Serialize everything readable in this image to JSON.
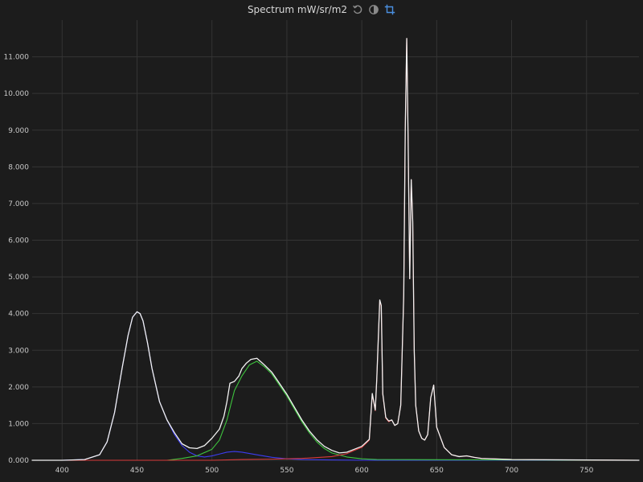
{
  "header": {
    "title": "Spectrum mW/sr/m2",
    "icons": [
      "reset-icon",
      "contrast-icon",
      "crop-icon"
    ]
  },
  "colors": {
    "background": "#1c1c1c",
    "grid": "#343434",
    "text": "#c8c8c8",
    "total": "#f2f2f2",
    "red": "#d93a3a",
    "green": "#3ec43e",
    "blue": "#3c3cf0",
    "icon_active": "#4a8fe0",
    "icon_inactive": "#8a8a8a"
  },
  "chart_data": {
    "type": "line",
    "title": "Spectrum mW/sr/m2",
    "xlabel": "",
    "ylabel": "",
    "xlim": [
      380,
      785
    ],
    "ylim": [
      0,
      12
    ],
    "grid": true,
    "x_ticks": [
      400,
      450,
      500,
      550,
      600,
      650,
      700,
      750
    ],
    "x_tick_labels": [
      "400",
      "450",
      "500",
      "550",
      "600",
      "650",
      "700",
      "750"
    ],
    "y_ticks": [
      0,
      1,
      2,
      3,
      4,
      5,
      6,
      7,
      8,
      9,
      10,
      11
    ],
    "y_tick_labels": [
      "0.000",
      "1.000",
      "2.000",
      "3.000",
      "4.000",
      "5.000",
      "6.000",
      "7.000",
      "8.000",
      "9.000",
      "10.000",
      "11.000"
    ],
    "series": [
      {
        "key": "blue",
        "x": [
          380,
          400,
          415,
          425,
          430,
          435,
          440,
          444,
          447,
          450,
          452,
          454,
          457,
          460,
          465,
          470,
          475,
          480,
          485,
          490,
          495,
          500,
          505,
          510,
          515,
          520,
          530,
          540,
          550,
          560,
          580,
          600,
          650,
          700,
          785
        ],
        "y": [
          0.0,
          0.0,
          0.02,
          0.15,
          0.5,
          1.3,
          2.5,
          3.4,
          3.9,
          4.05,
          4.0,
          3.8,
          3.2,
          2.5,
          1.6,
          1.1,
          0.7,
          0.4,
          0.22,
          0.12,
          0.09,
          0.12,
          0.17,
          0.22,
          0.24,
          0.22,
          0.15,
          0.08,
          0.04,
          0.02,
          0.01,
          0.0,
          0.0,
          0.0,
          0.0
        ]
      },
      {
        "key": "green",
        "x": [
          380,
          470,
          480,
          490,
          500,
          505,
          510,
          515,
          520,
          525,
          530,
          535,
          540,
          545,
          550,
          555,
          560,
          565,
          570,
          575,
          580,
          590,
          600,
          610,
          785
        ],
        "y": [
          0.0,
          0.0,
          0.05,
          0.12,
          0.3,
          0.55,
          1.1,
          1.9,
          2.3,
          2.6,
          2.7,
          2.55,
          2.35,
          2.05,
          1.75,
          1.4,
          1.05,
          0.75,
          0.5,
          0.32,
          0.2,
          0.09,
          0.04,
          0.02,
          0.0
        ]
      },
      {
        "key": "red",
        "x": [
          380,
          500,
          520,
          540,
          560,
          580,
          590,
          595,
          600,
          605,
          607,
          609,
          610,
          612,
          613,
          614,
          616,
          618,
          620,
          622,
          624,
          626,
          628,
          629,
          630,
          631,
          632,
          633,
          634,
          635,
          636,
          638,
          640,
          642,
          644,
          646,
          648,
          650,
          655,
          660,
          665,
          670,
          675,
          680,
          700,
          785
        ],
        "y": [
          0.0,
          0.0,
          0.02,
          0.03,
          0.05,
          0.1,
          0.18,
          0.27,
          0.35,
          0.55,
          1.8,
          1.35,
          2.2,
          4.35,
          4.2,
          1.8,
          1.15,
          1.05,
          1.1,
          0.95,
          1.0,
          1.5,
          4.5,
          9.0,
          11.5,
          8.5,
          4.95,
          7.65,
          6.5,
          3.0,
          1.5,
          0.8,
          0.6,
          0.55,
          0.7,
          1.7,
          2.05,
          0.9,
          0.35,
          0.15,
          0.1,
          0.12,
          0.08,
          0.05,
          0.02,
          0.0
        ]
      },
      {
        "key": "total",
        "x": [
          380,
          400,
          415,
          425,
          430,
          435,
          440,
          444,
          447,
          450,
          452,
          454,
          457,
          460,
          465,
          470,
          475,
          480,
          485,
          490,
          495,
          500,
          505,
          508,
          510,
          512,
          515,
          518,
          520,
          523,
          526,
          530,
          535,
          540,
          545,
          550,
          555,
          560,
          565,
          570,
          575,
          580,
          585,
          590,
          595,
          600,
          605,
          607,
          609,
          610,
          612,
          613,
          614,
          616,
          618,
          620,
          622,
          624,
          626,
          628,
          629,
          630,
          631,
          632,
          633,
          634,
          635,
          636,
          638,
          640,
          642,
          644,
          646,
          648,
          650,
          655,
          660,
          665,
          670,
          675,
          680,
          700,
          785
        ],
        "y": [
          0.0,
          0.0,
          0.02,
          0.15,
          0.5,
          1.3,
          2.5,
          3.4,
          3.9,
          4.05,
          4.0,
          3.8,
          3.2,
          2.5,
          1.6,
          1.1,
          0.75,
          0.45,
          0.34,
          0.32,
          0.4,
          0.6,
          0.85,
          1.2,
          1.6,
          2.1,
          2.15,
          2.3,
          2.5,
          2.65,
          2.75,
          2.78,
          2.6,
          2.4,
          2.1,
          1.8,
          1.45,
          1.1,
          0.8,
          0.56,
          0.38,
          0.27,
          0.2,
          0.22,
          0.3,
          0.38,
          0.57,
          1.82,
          1.37,
          2.22,
          4.37,
          4.22,
          1.82,
          1.17,
          1.07,
          1.1,
          0.95,
          1.0,
          1.5,
          4.5,
          9.0,
          11.5,
          8.5,
          4.95,
          7.65,
          6.5,
          3.0,
          1.5,
          0.8,
          0.6,
          0.55,
          0.7,
          1.7,
          2.05,
          0.9,
          0.35,
          0.15,
          0.1,
          0.12,
          0.08,
          0.05,
          0.02,
          0.0
        ]
      }
    ]
  }
}
